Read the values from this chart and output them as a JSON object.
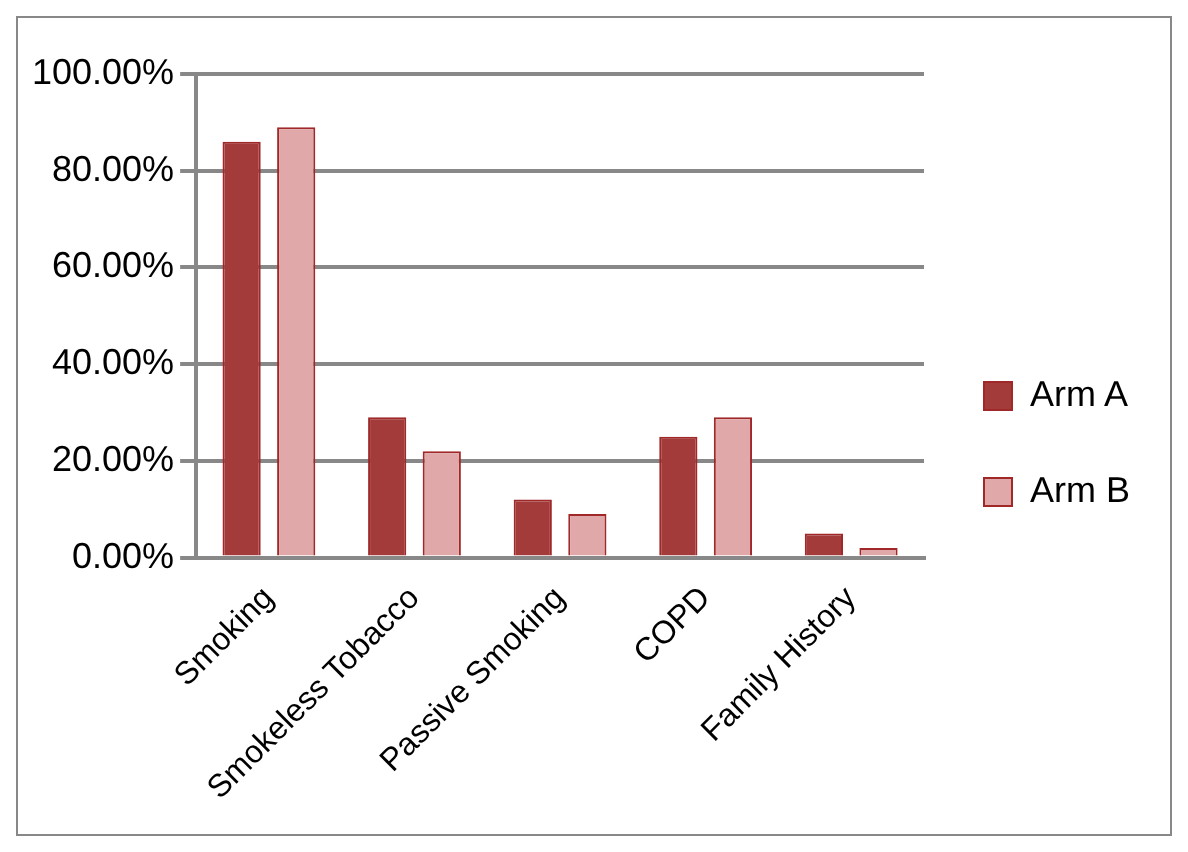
{
  "chart_data": {
    "type": "bar",
    "categories": [
      "Smoking",
      "Smokeless Tobacco",
      "Passive Smoking",
      "COPD",
      "Family History"
    ],
    "series": [
      {
        "name": "Arm A",
        "color": "#a33b3b",
        "values": [
          86,
          29,
          12,
          25,
          5
        ]
      },
      {
        "name": "Arm B",
        "color": "#e0a8a8",
        "values": [
          89,
          22,
          9,
          29,
          2
        ]
      }
    ],
    "ylim": [
      0,
      100
    ],
    "yticks": [
      {
        "value": 0,
        "label": "0.00%"
      },
      {
        "value": 20,
        "label": "20.00%"
      },
      {
        "value": 40,
        "label": "40.00%"
      },
      {
        "value": 60,
        "label": "60.00%"
      },
      {
        "value": 80,
        "label": "80.00%"
      },
      {
        "value": 100,
        "label": "100.00%"
      }
    ],
    "grid": "y",
    "legend": "right"
  }
}
